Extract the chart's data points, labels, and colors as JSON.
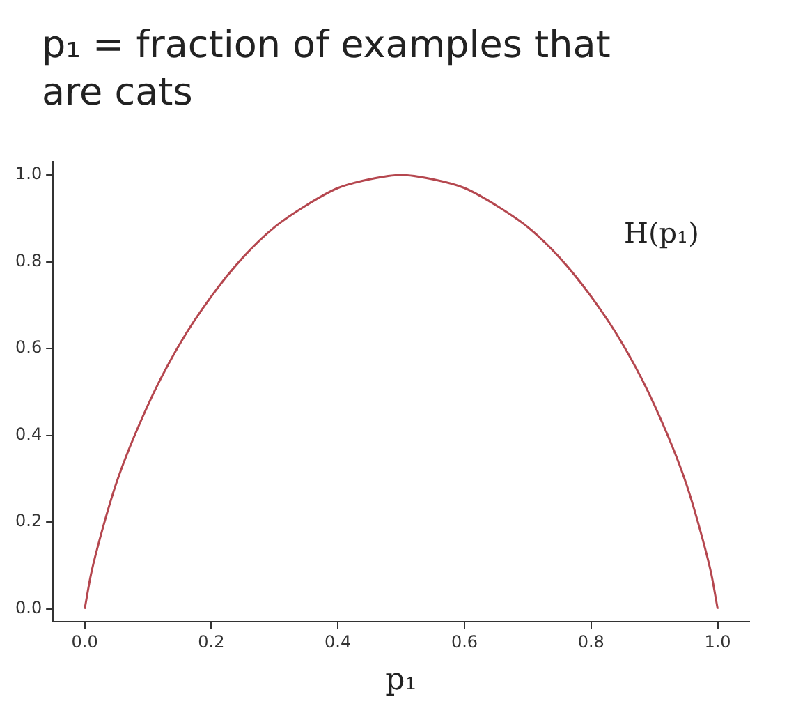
{
  "chart_data": {
    "type": "line",
    "title": "p₁ = fraction of examples that are cats",
    "xlabel": "p₁",
    "x": [
      0,
      0.01,
      0.02,
      0.05,
      0.1,
      0.15,
      0.2,
      0.25,
      0.3,
      0.35,
      0.4,
      0.45,
      0.5,
      0.55,
      0.6,
      0.65,
      0.7,
      0.75,
      0.8,
      0.85,
      0.9,
      0.95,
      0.98,
      0.99,
      1
    ],
    "series": [
      {
        "color": "#b5474f",
        "values": [
          0,
          0.08,
          0.14,
          0.29,
          0.47,
          0.61,
          0.72,
          0.81,
          0.88,
          0.93,
          0.97,
          0.99,
          1,
          0.99,
          0.97,
          0.93,
          0.88,
          0.81,
          0.72,
          0.61,
          0.47,
          0.29,
          0.14,
          0.08,
          0
        ]
      }
    ],
    "annotations": [
      "H(p₁)"
    ],
    "xlim": [
      -0.05,
      1.05
    ],
    "ylim": [
      -0.03,
      1.03
    ],
    "xticks": [
      {
        "value": 0,
        "label": "0.0"
      },
      0.2,
      0.4,
      0.6,
      0.8,
      {
        "value": 1,
        "label": "1.0"
      }
    ],
    "yticks": [
      {
        "value": 0,
        "label": "0.0"
      },
      0.2,
      0.4,
      0.6,
      0.8,
      {
        "value": 1,
        "label": "1.0"
      }
    ],
    "grid": false,
    "legend": false,
    "marker": "none",
    "line_style": "solid"
  }
}
